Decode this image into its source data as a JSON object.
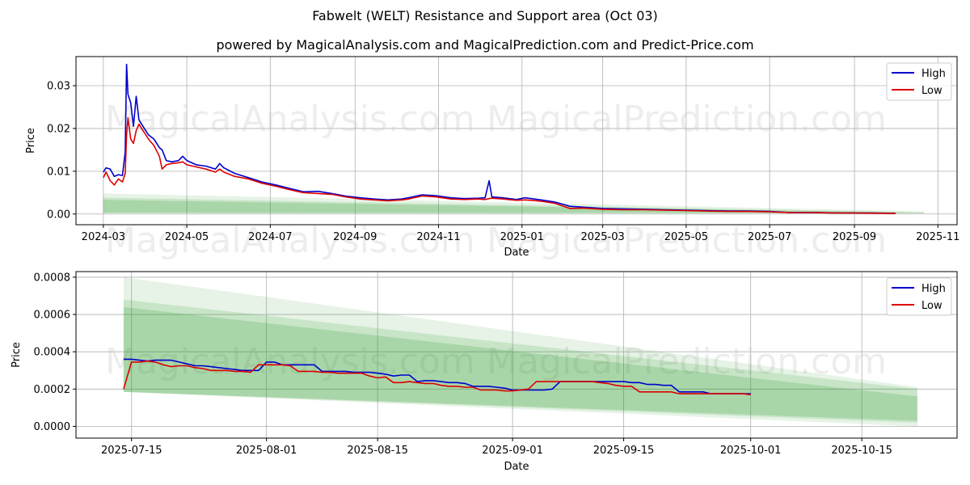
{
  "header": {
    "title": "Fabwelt (WELT) Resistance and Support area (Oct 03)",
    "subtitle": "powered by MagicalAnalysis.com and MagicalPrediction.com and Predict-Price.com"
  },
  "watermarks": [
    "MagicalAnalysis.com",
    "MagicalPrediction.com"
  ],
  "colors": {
    "high": "#0000cc",
    "low": "#dd0000",
    "band": "#2e9a2e",
    "grid": "#b0b0b0"
  },
  "chart_data": [
    {
      "type": "line",
      "xlabel": "Date",
      "ylabel": "Price",
      "x_range": [
        "2024-02-10",
        "2025-11-15"
      ],
      "ylim": [
        -0.0025,
        0.0368
      ],
      "x_ticks": [
        {
          "date": "2024-03-01",
          "label": "2024-03"
        },
        {
          "date": "2024-05-01",
          "label": "2024-05"
        },
        {
          "date": "2024-07-01",
          "label": "2024-07"
        },
        {
          "date": "2024-09-01",
          "label": "2024-09"
        },
        {
          "date": "2024-11-01",
          "label": "2024-11"
        },
        {
          "date": "2025-01-01",
          "label": "2025-01"
        },
        {
          "date": "2025-03-01",
          "label": "2025-03"
        },
        {
          "date": "2025-05-01",
          "label": "2025-05"
        },
        {
          "date": "2025-07-01",
          "label": "2025-07"
        },
        {
          "date": "2025-09-01",
          "label": "2025-09"
        },
        {
          "date": "2025-11-01",
          "label": "2025-11"
        }
      ],
      "y_ticks": [
        {
          "value": 0.0,
          "label": "0.00"
        },
        {
          "value": 0.01,
          "label": "0.01"
        },
        {
          "value": 0.02,
          "label": "0.02"
        },
        {
          "value": 0.03,
          "label": "0.03"
        }
      ],
      "bands": [
        {
          "x": [
            "2024-03-01",
            "2025-10-22"
          ],
          "lower": [
            0.0002,
            0.0002
          ],
          "upper": [
            0.0048,
            0.0006
          ],
          "opacity": 0.12
        },
        {
          "x": [
            "2024-03-01",
            "2025-10-22"
          ],
          "lower": [
            0.0002,
            0.0002
          ],
          "upper": [
            0.0038,
            0.0004
          ],
          "opacity": 0.16
        },
        {
          "x": [
            "2024-03-01",
            "2025-10-22"
          ],
          "lower": [
            0.0003,
            0.0002
          ],
          "upper": [
            0.0033,
            0.0003
          ],
          "opacity": 0.2
        }
      ],
      "series": [
        {
          "name": "High",
          "x": [
            "2024-03-01",
            "2024-03-03",
            "2024-03-06",
            "2024-03-09",
            "2024-03-12",
            "2024-03-15",
            "2024-03-17",
            "2024-03-18",
            "2024-03-19",
            "2024-03-21",
            "2024-03-23",
            "2024-03-25",
            "2024-03-27",
            "2024-03-30",
            "2024-04-03",
            "2024-04-07",
            "2024-04-11",
            "2024-04-13",
            "2024-04-16",
            "2024-04-20",
            "2024-04-25",
            "2024-04-28",
            "2024-05-01",
            "2024-05-08",
            "2024-05-15",
            "2024-05-22",
            "2024-05-25",
            "2024-05-28",
            "2024-06-05",
            "2024-06-15",
            "2024-06-25",
            "2024-07-05",
            "2024-07-15",
            "2024-07-25",
            "2024-08-05",
            "2024-08-15",
            "2024-08-25",
            "2024-09-05",
            "2024-09-15",
            "2024-09-25",
            "2024-10-05",
            "2024-10-10",
            "2024-10-20",
            "2024-10-30",
            "2024-11-10",
            "2024-11-20",
            "2024-11-30",
            "2024-12-05",
            "2024-12-08",
            "2024-12-10",
            "2024-12-18",
            "2024-12-28",
            "2025-01-03",
            "2025-01-08",
            "2025-01-15",
            "2025-01-25",
            "2025-02-05",
            "2025-02-15",
            "2025-03-01",
            "2025-03-15",
            "2025-04-01",
            "2025-04-15",
            "2025-05-01",
            "2025-05-15",
            "2025-06-01",
            "2025-06-15",
            "2025-07-01",
            "2025-07-15",
            "2025-08-01",
            "2025-08-15",
            "2025-09-01",
            "2025-09-15",
            "2025-10-01"
          ],
          "values": [
            0.0098,
            0.0108,
            0.0105,
            0.0088,
            0.0092,
            0.009,
            0.0145,
            0.035,
            0.028,
            0.026,
            0.0205,
            0.0275,
            0.022,
            0.0205,
            0.0185,
            0.0175,
            0.0155,
            0.015,
            0.0125,
            0.0122,
            0.0125,
            0.0135,
            0.0125,
            0.0115,
            0.0112,
            0.0105,
            0.0118,
            0.0108,
            0.0095,
            0.0085,
            0.0075,
            0.0068,
            0.006,
            0.0052,
            0.0053,
            0.0048,
            0.0042,
            0.0038,
            0.0035,
            0.0033,
            0.0035,
            0.0038,
            0.0045,
            0.0043,
            0.0038,
            0.0036,
            0.0037,
            0.0038,
            0.0078,
            0.004,
            0.0038,
            0.0034,
            0.0038,
            0.0036,
            0.0033,
            0.0028,
            0.0018,
            0.0016,
            0.0013,
            0.0012,
            0.0011,
            0.001,
            0.0009,
            0.0008,
            0.0007,
            0.0007,
            0.0006,
            0.00036,
            0.00035,
            0.00027,
            0.00024,
            0.00022,
            0.00017
          ]
        },
        {
          "name": "Low",
          "x": [
            "2024-03-01",
            "2024-03-03",
            "2024-03-06",
            "2024-03-09",
            "2024-03-12",
            "2024-03-15",
            "2024-03-17",
            "2024-03-18",
            "2024-03-19",
            "2024-03-21",
            "2024-03-23",
            "2024-03-25",
            "2024-03-27",
            "2024-03-30",
            "2024-04-03",
            "2024-04-07",
            "2024-04-11",
            "2024-04-13",
            "2024-04-16",
            "2024-04-20",
            "2024-04-25",
            "2024-04-28",
            "2024-05-01",
            "2024-05-08",
            "2024-05-15",
            "2024-05-22",
            "2024-05-25",
            "2024-05-28",
            "2024-06-05",
            "2024-06-15",
            "2024-06-25",
            "2024-07-05",
            "2024-07-15",
            "2024-07-25",
            "2024-08-05",
            "2024-08-15",
            "2024-08-25",
            "2024-09-05",
            "2024-09-15",
            "2024-09-25",
            "2024-10-05",
            "2024-10-10",
            "2024-10-20",
            "2024-10-30",
            "2024-11-10",
            "2024-11-20",
            "2024-11-30",
            "2024-12-05",
            "2024-12-08",
            "2024-12-10",
            "2024-12-18",
            "2024-12-28",
            "2025-01-03",
            "2025-01-08",
            "2025-01-15",
            "2025-01-25",
            "2025-02-05",
            "2025-02-15",
            "2025-03-01",
            "2025-03-15",
            "2025-04-01",
            "2025-04-15",
            "2025-05-01",
            "2025-05-15",
            "2025-06-01",
            "2025-06-15",
            "2025-07-01",
            "2025-07-15",
            "2025-08-01",
            "2025-08-15",
            "2025-09-01",
            "2025-09-15",
            "2025-10-01"
          ],
          "values": [
            0.0085,
            0.0098,
            0.0078,
            0.0068,
            0.0082,
            0.0075,
            0.0095,
            0.0185,
            0.0225,
            0.0175,
            0.0165,
            0.0195,
            0.021,
            0.0195,
            0.0175,
            0.016,
            0.0135,
            0.0105,
            0.0115,
            0.0118,
            0.012,
            0.0122,
            0.0115,
            0.011,
            0.0105,
            0.0098,
            0.0105,
            0.0098,
            0.0088,
            0.0082,
            0.0072,
            0.0065,
            0.0057,
            0.005,
            0.0048,
            0.0046,
            0.004,
            0.0035,
            0.0033,
            0.0031,
            0.0033,
            0.0035,
            0.0042,
            0.004,
            0.0035,
            0.0034,
            0.0035,
            0.0034,
            0.0036,
            0.0037,
            0.0035,
            0.0032,
            0.0033,
            0.0032,
            0.003,
            0.0025,
            0.0013,
            0.0014,
            0.0011,
            0.001,
            0.001,
            0.0009,
            0.0008,
            0.0007,
            0.0006,
            0.0006,
            0.0005,
            0.00035,
            0.00033,
            0.00025,
            0.00024,
            0.00018,
            0.00017
          ]
        }
      ],
      "legend": [
        "High",
        "Low"
      ]
    },
    {
      "type": "line",
      "xlabel": "Date",
      "ylabel": "Price",
      "x_range": [
        "2025-07-08",
        "2025-10-27"
      ],
      "ylim": [
        -6.3e-05,
        0.00083
      ],
      "x_ticks": [
        {
          "date": "2025-07-15",
          "label": "2025-07-15"
        },
        {
          "date": "2025-08-01",
          "label": "2025-08-01"
        },
        {
          "date": "2025-08-15",
          "label": "2025-08-15"
        },
        {
          "date": "2025-09-01",
          "label": "2025-09-01"
        },
        {
          "date": "2025-09-15",
          "label": "2025-09-15"
        },
        {
          "date": "2025-10-01",
          "label": "2025-10-01"
        },
        {
          "date": "2025-10-15",
          "label": "2025-10-15"
        }
      ],
      "y_ticks": [
        {
          "value": 0.0,
          "label": "0.0000"
        },
        {
          "value": 0.0002,
          "label": "0.0002"
        },
        {
          "value": 0.0004,
          "label": "0.0004"
        },
        {
          "value": 0.0006,
          "label": "0.0006"
        },
        {
          "value": 0.0008,
          "label": "0.0008"
        }
      ],
      "bands": [
        {
          "x": [
            "2025-07-14",
            "2025-10-22"
          ],
          "lower": [
            0.000185,
            0.0
          ],
          "upper": [
            0.0008,
            0.00021
          ],
          "opacity": 0.12
        },
        {
          "x": [
            "2025-07-14",
            "2025-10-22"
          ],
          "lower": [
            0.000185,
            2e-05
          ],
          "upper": [
            0.00068,
            0.0002
          ],
          "opacity": 0.16
        },
        {
          "x": [
            "2025-07-14",
            "2025-10-22"
          ],
          "lower": [
            0.000185,
            3e-05
          ],
          "upper": [
            0.00064,
            0.00016
          ],
          "opacity": 0.2
        }
      ],
      "series": [
        {
          "name": "High",
          "x": [
            "2025-07-14",
            "2025-07-15",
            "2025-07-16",
            "2025-07-17",
            "2025-07-18",
            "2025-07-19",
            "2025-07-20",
            "2025-07-21",
            "2025-07-22",
            "2025-07-23",
            "2025-07-24",
            "2025-07-25",
            "2025-07-26",
            "2025-07-27",
            "2025-07-28",
            "2025-07-29",
            "2025-07-30",
            "2025-07-31",
            "2025-08-01",
            "2025-08-02",
            "2025-08-03",
            "2025-08-04",
            "2025-08-05",
            "2025-08-06",
            "2025-08-07",
            "2025-08-08",
            "2025-08-09",
            "2025-08-10",
            "2025-08-11",
            "2025-08-12",
            "2025-08-13",
            "2025-08-14",
            "2025-08-15",
            "2025-08-16",
            "2025-08-17",
            "2025-08-18",
            "2025-08-19",
            "2025-08-20",
            "2025-08-21",
            "2025-08-22",
            "2025-08-23",
            "2025-08-24",
            "2025-08-25",
            "2025-08-26",
            "2025-08-27",
            "2025-08-28",
            "2025-08-29",
            "2025-08-30",
            "2025-08-31",
            "2025-09-01",
            "2025-09-02",
            "2025-09-03",
            "2025-09-04",
            "2025-09-05",
            "2025-09-06",
            "2025-09-07",
            "2025-09-08",
            "2025-09-09",
            "2025-09-10",
            "2025-09-11",
            "2025-09-12",
            "2025-09-13",
            "2025-09-14",
            "2025-09-15",
            "2025-09-16",
            "2025-09-17",
            "2025-09-18",
            "2025-09-19",
            "2025-09-20",
            "2025-09-21",
            "2025-09-22",
            "2025-09-23",
            "2025-09-24",
            "2025-09-25",
            "2025-09-26",
            "2025-09-27",
            "2025-09-28",
            "2025-09-29",
            "2025-09-30",
            "2025-10-01"
          ],
          "values": [
            0.00036,
            0.00036,
            0.000355,
            0.00035,
            0.000355,
            0.000355,
            0.000355,
            0.000345,
            0.000335,
            0.000325,
            0.000325,
            0.00032,
            0.000315,
            0.00031,
            0.000305,
            0.0003,
            0.0003,
            0.0003,
            0.000345,
            0.000345,
            0.00033,
            0.00033,
            0.00033,
            0.00033,
            0.00033,
            0.000295,
            0.000295,
            0.000295,
            0.000295,
            0.00029,
            0.00029,
            0.00029,
            0.000285,
            0.00028,
            0.00027,
            0.000275,
            0.000275,
            0.00024,
            0.000245,
            0.000245,
            0.00024,
            0.000235,
            0.000235,
            0.00023,
            0.000215,
            0.000215,
            0.000215,
            0.00021,
            0.000205,
            0.000195,
            0.000195,
            0.000195,
            0.000195,
            0.000195,
            0.0002,
            0.00024,
            0.00024,
            0.00024,
            0.00024,
            0.00024,
            0.00024,
            0.00024,
            0.00024,
            0.00024,
            0.000235,
            0.000235,
            0.000225,
            0.000225,
            0.00022,
            0.00022,
            0.000185,
            0.000185,
            0.000185,
            0.000185,
            0.000175,
            0.000175,
            0.000175,
            0.000175,
            0.000175,
            0.000175
          ]
        },
        {
          "name": "Low",
          "x": [
            "2025-07-14",
            "2025-07-15",
            "2025-07-16",
            "2025-07-17",
            "2025-07-18",
            "2025-07-19",
            "2025-07-20",
            "2025-07-21",
            "2025-07-22",
            "2025-07-23",
            "2025-07-24",
            "2025-07-25",
            "2025-07-26",
            "2025-07-27",
            "2025-07-28",
            "2025-07-29",
            "2025-07-30",
            "2025-07-31",
            "2025-08-01",
            "2025-08-02",
            "2025-08-03",
            "2025-08-04",
            "2025-08-05",
            "2025-08-06",
            "2025-08-07",
            "2025-08-08",
            "2025-08-09",
            "2025-08-10",
            "2025-08-11",
            "2025-08-12",
            "2025-08-13",
            "2025-08-14",
            "2025-08-15",
            "2025-08-16",
            "2025-08-17",
            "2025-08-18",
            "2025-08-19",
            "2025-08-20",
            "2025-08-21",
            "2025-08-22",
            "2025-08-23",
            "2025-08-24",
            "2025-08-25",
            "2025-08-26",
            "2025-08-27",
            "2025-08-28",
            "2025-08-29",
            "2025-08-30",
            "2025-08-31",
            "2025-09-01",
            "2025-09-02",
            "2025-09-03",
            "2025-09-04",
            "2025-09-05",
            "2025-09-06",
            "2025-09-07",
            "2025-09-08",
            "2025-09-09",
            "2025-09-10",
            "2025-09-11",
            "2025-09-12",
            "2025-09-13",
            "2025-09-14",
            "2025-09-15",
            "2025-09-16",
            "2025-09-17",
            "2025-09-18",
            "2025-09-19",
            "2025-09-20",
            "2025-09-21",
            "2025-09-22",
            "2025-09-23",
            "2025-09-24",
            "2025-09-25",
            "2025-09-26",
            "2025-09-27",
            "2025-09-28",
            "2025-09-29",
            "2025-09-30",
            "2025-10-01"
          ],
          "values": [
            0.0002,
            0.000345,
            0.000345,
            0.00035,
            0.000345,
            0.00033,
            0.00032,
            0.000325,
            0.000325,
            0.000315,
            0.00031,
            0.0003,
            0.0003,
            0.0003,
            0.000295,
            0.000295,
            0.00029,
            0.00033,
            0.00033,
            0.00033,
            0.00033,
            0.000325,
            0.000295,
            0.000295,
            0.000295,
            0.00029,
            0.00029,
            0.000285,
            0.000285,
            0.000285,
            0.000285,
            0.00027,
            0.00026,
            0.000265,
            0.000235,
            0.000235,
            0.00024,
            0.000235,
            0.00023,
            0.00023,
            0.00022,
            0.000215,
            0.000215,
            0.00021,
            0.00021,
            0.000195,
            0.000195,
            0.000195,
            0.00019,
            0.00019,
            0.000195,
            0.0002,
            0.00024,
            0.00024,
            0.00024,
            0.00024,
            0.00024,
            0.00024,
            0.00024,
            0.00024,
            0.000235,
            0.00023,
            0.00022,
            0.000215,
            0.000215,
            0.000185,
            0.000185,
            0.000185,
            0.000185,
            0.000185,
            0.000175,
            0.000175,
            0.000175,
            0.000175,
            0.000175,
            0.000175,
            0.000175,
            0.000175,
            0.000175,
            0.00017
          ]
        }
      ],
      "legend": [
        "High",
        "Low"
      ]
    }
  ]
}
